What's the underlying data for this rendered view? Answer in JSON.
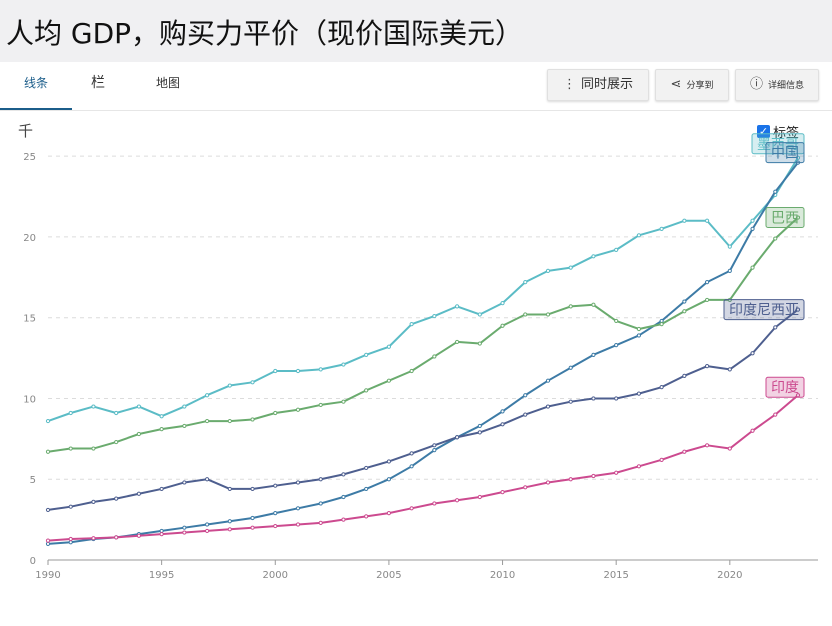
{
  "page": {
    "title": "人均 GDP，购买力平价（现价国际美元）"
  },
  "toolbar": {
    "tabs": [
      "线条",
      "栏",
      "地图"
    ],
    "active_tab": 0,
    "show_together": "同时展示",
    "share": "分享到",
    "details": "详细信息"
  },
  "unit_label": "千",
  "labels_toggle": {
    "label": "标签",
    "checked": true
  },
  "chart_data": {
    "type": "line",
    "x": [
      1990,
      1991,
      1992,
      1993,
      1994,
      1995,
      1996,
      1997,
      1998,
      1999,
      2000,
      2001,
      2002,
      2003,
      2004,
      2005,
      2006,
      2007,
      2008,
      2009,
      2010,
      2011,
      2012,
      2013,
      2014,
      2015,
      2016,
      2017,
      2018,
      2019,
      2020,
      2021,
      2022,
      2023
    ],
    "xticks": [
      1990,
      1995,
      2000,
      2005,
      2010,
      2015,
      2020
    ],
    "yticks": [
      0,
      5,
      10,
      15,
      20,
      25
    ],
    "ylim": [
      0,
      26
    ],
    "xlim": [
      1990,
      2023
    ],
    "series": [
      {
        "name": "墨西哥",
        "color": "#5bbcc6",
        "values": [
          8.6,
          9.1,
          9.5,
          9.1,
          9.5,
          8.9,
          9.5,
          10.2,
          10.8,
          11.0,
          11.7,
          11.7,
          11.8,
          12.1,
          12.7,
          13.2,
          14.6,
          15.1,
          15.7,
          15.2,
          15.9,
          17.2,
          17.9,
          18.1,
          18.8,
          19.2,
          20.1,
          20.5,
          21.0,
          21.0,
          19.4,
          21.0,
          22.6,
          24.9
        ]
      },
      {
        "name": "中国",
        "color": "#3d7ba6",
        "values": [
          1.0,
          1.1,
          1.3,
          1.4,
          1.6,
          1.8,
          2.0,
          2.2,
          2.4,
          2.6,
          2.9,
          3.2,
          3.5,
          3.9,
          4.4,
          5.0,
          5.8,
          6.8,
          7.6,
          8.3,
          9.2,
          10.2,
          11.1,
          11.9,
          12.7,
          13.3,
          13.9,
          14.8,
          16.0,
          17.2,
          17.9,
          20.5,
          22.8,
          24.6
        ]
      },
      {
        "name": "巴西",
        "color": "#6aab6e",
        "values": [
          6.7,
          6.9,
          6.9,
          7.3,
          7.8,
          8.1,
          8.3,
          8.6,
          8.6,
          8.7,
          9.1,
          9.3,
          9.6,
          9.8,
          10.5,
          11.1,
          11.7,
          12.6,
          13.5,
          13.4,
          14.5,
          15.2,
          15.2,
          15.7,
          15.8,
          14.8,
          14.3,
          14.6,
          15.4,
          16.1,
          16.1,
          18.1,
          19.9,
          21.2
        ]
      },
      {
        "name": "印度尼西亚",
        "color": "#4e5f8f",
        "values": [
          3.1,
          3.3,
          3.6,
          3.8,
          4.1,
          4.4,
          4.8,
          5.0,
          4.4,
          4.4,
          4.6,
          4.8,
          5.0,
          5.3,
          5.7,
          6.1,
          6.6,
          7.1,
          7.6,
          7.9,
          8.4,
          9.0,
          9.5,
          9.8,
          10.0,
          10.0,
          10.3,
          10.7,
          11.4,
          12.0,
          11.8,
          12.8,
          14.4,
          15.5
        ]
      },
      {
        "name": "印度",
        "color": "#cc4a8f",
        "values": [
          1.2,
          1.3,
          1.35,
          1.4,
          1.5,
          1.6,
          1.7,
          1.8,
          1.9,
          2.0,
          2.1,
          2.2,
          2.3,
          2.5,
          2.7,
          2.9,
          3.2,
          3.5,
          3.7,
          3.9,
          4.2,
          4.5,
          4.8,
          5.0,
          5.2,
          5.4,
          5.8,
          6.2,
          6.7,
          7.1,
          6.9,
          8.0,
          9.0,
          10.2
        ]
      }
    ]
  }
}
